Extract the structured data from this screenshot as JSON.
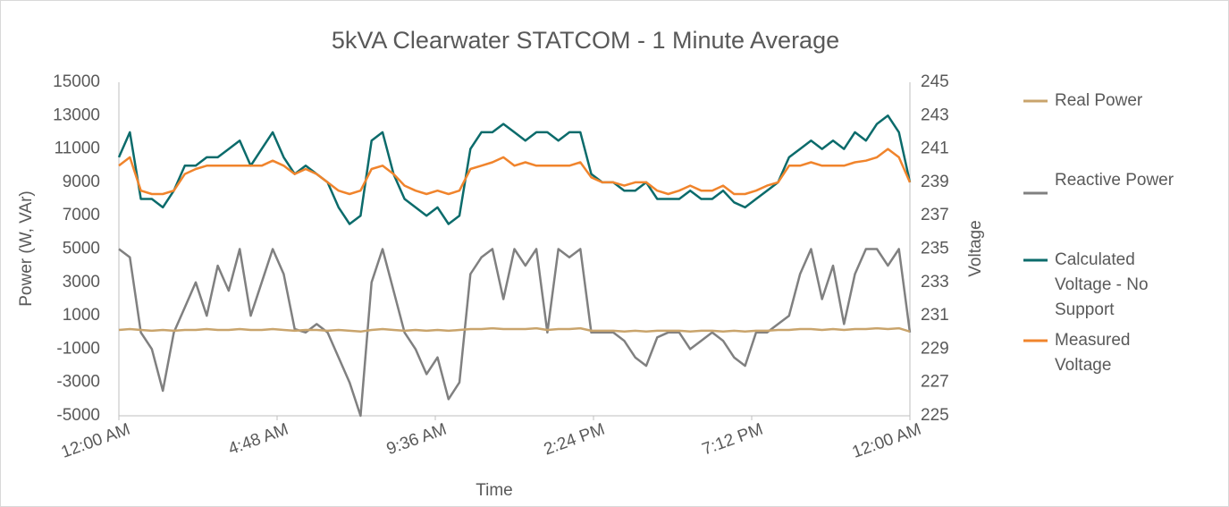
{
  "chart_data": {
    "type": "line",
    "title": "5kVA Clearwater STATCOM - 1 Minute Average",
    "x_label": "Time",
    "y_label": "Power (W, VAr)",
    "y2_label": "Voltage",
    "x": [
      0,
      20,
      40,
      60,
      80,
      100,
      120,
      140,
      160,
      180,
      200,
      220,
      240,
      260,
      280,
      300,
      320,
      340,
      360,
      380,
      400,
      420,
      440,
      460,
      480,
      500,
      520,
      540,
      560,
      580,
      600,
      620,
      640,
      660,
      680,
      700,
      720,
      740,
      760,
      780,
      800,
      820,
      840,
      860,
      880,
      900,
      920,
      940,
      960,
      980,
      1000,
      1020,
      1040,
      1060,
      1080,
      1100,
      1120,
      1140,
      1160,
      1180,
      1200,
      1220,
      1240,
      1260,
      1280,
      1300,
      1320,
      1340,
      1360,
      1380,
      1400,
      1420,
      1440
    ],
    "xlim": [
      0,
      1440
    ],
    "xticks": [
      {
        "value": 0,
        "label": "12:00 AM"
      },
      {
        "value": 288,
        "label": "4:48 AM"
      },
      {
        "value": 576,
        "label": "9:36 AM"
      },
      {
        "value": 864,
        "label": "2:24 PM"
      },
      {
        "value": 1152,
        "label": "7:12 PM"
      },
      {
        "value": 1440,
        "label": "12:00 AM"
      }
    ],
    "ylim": [
      -5000,
      15000
    ],
    "yticks": [
      -5000,
      -3000,
      -1000,
      1000,
      3000,
      5000,
      7000,
      9000,
      11000,
      13000,
      15000
    ],
    "y2lim": [
      225,
      245
    ],
    "y2ticks": [
      225,
      227,
      229,
      231,
      233,
      235,
      237,
      239,
      241,
      243,
      245
    ],
    "grid": false,
    "legend": "right",
    "series": [
      {
        "name": "Real Power",
        "color": "#c9a46c",
        "values": [
          150,
          200,
          150,
          100,
          150,
          100,
          150,
          150,
          200,
          150,
          150,
          200,
          150,
          150,
          200,
          150,
          100,
          150,
          150,
          100,
          150,
          100,
          50,
          150,
          200,
          150,
          100,
          150,
          100,
          150,
          100,
          150,
          200,
          200,
          250,
          200,
          200,
          200,
          250,
          150,
          200,
          200,
          250,
          100,
          100,
          100,
          50,
          100,
          50,
          100,
          100,
          100,
          50,
          100,
          100,
          50,
          100,
          50,
          100,
          100,
          150,
          150,
          200,
          200,
          150,
          200,
          150,
          200,
          200,
          250,
          200,
          250,
          50
        ]
      },
      {
        "name": "Reactive Power",
        "color": "#808080",
        "values": [
          5000,
          4500,
          0,
          -1000,
          -3500,
          0,
          1500,
          3000,
          1000,
          4000,
          2500,
          5000,
          1000,
          3000,
          5000,
          3500,
          200,
          0,
          500,
          0,
          -1500,
          -3000,
          -5000,
          3000,
          5000,
          2500,
          0,
          -1000,
          -2500,
          -1500,
          -4000,
          -3000,
          3500,
          4500,
          5000,
          2000,
          5000,
          4000,
          5000,
          0,
          5000,
          4500,
          5000,
          0,
          0,
          0,
          -500,
          -1500,
          -2000,
          -300,
          0,
          0,
          -1000,
          -500,
          0,
          -500,
          -1500,
          -2000,
          0,
          0,
          500,
          1000,
          3500,
          5000,
          2000,
          4000,
          500,
          3500,
          5000,
          5000,
          4000,
          5000,
          0
        ]
      },
      {
        "name": "Calculated Voltage - No Support",
        "color": "#0b6b6b",
        "axis": "y2",
        "values": [
          240.5,
          242,
          238,
          238,
          237.5,
          238.5,
          240,
          240,
          240.5,
          240.5,
          241,
          241.5,
          240,
          241,
          242,
          240.5,
          239.5,
          240,
          239.5,
          239,
          237.5,
          236.5,
          237,
          241.5,
          242,
          239.5,
          238,
          237.5,
          237,
          237.5,
          236.5,
          237,
          241,
          242,
          242,
          242.5,
          242,
          241.5,
          242,
          242,
          241.5,
          242,
          242,
          239.5,
          239,
          239,
          238.5,
          238.5,
          239,
          238,
          238,
          238,
          238.5,
          238,
          238,
          238.5,
          237.8,
          237.5,
          238,
          238.5,
          239,
          240.5,
          241,
          241.5,
          241,
          241.5,
          241,
          242,
          241.5,
          242.5,
          243,
          242,
          239
        ]
      },
      {
        "name": "Measured Voltage",
        "color": "#f0842c",
        "axis": "y2",
        "values": [
          240,
          240.5,
          238.5,
          238.3,
          238.3,
          238.5,
          239.5,
          239.8,
          240,
          240,
          240,
          240,
          240,
          240,
          240.3,
          240,
          239.5,
          239.8,
          239.5,
          239,
          238.5,
          238.3,
          238.5,
          239.8,
          240,
          239.5,
          238.8,
          238.5,
          238.3,
          238.5,
          238.3,
          238.5,
          239.8,
          240,
          240.2,
          240.5,
          240,
          240.2,
          240,
          240,
          240,
          240,
          240.2,
          239.3,
          239,
          239,
          238.8,
          239,
          239,
          238.5,
          238.3,
          238.5,
          238.8,
          238.5,
          238.5,
          238.8,
          238.3,
          238.3,
          238.5,
          238.8,
          239,
          240,
          240,
          240.2,
          240,
          240,
          240,
          240.2,
          240.3,
          240.5,
          241,
          240.5,
          239
        ]
      }
    ]
  }
}
